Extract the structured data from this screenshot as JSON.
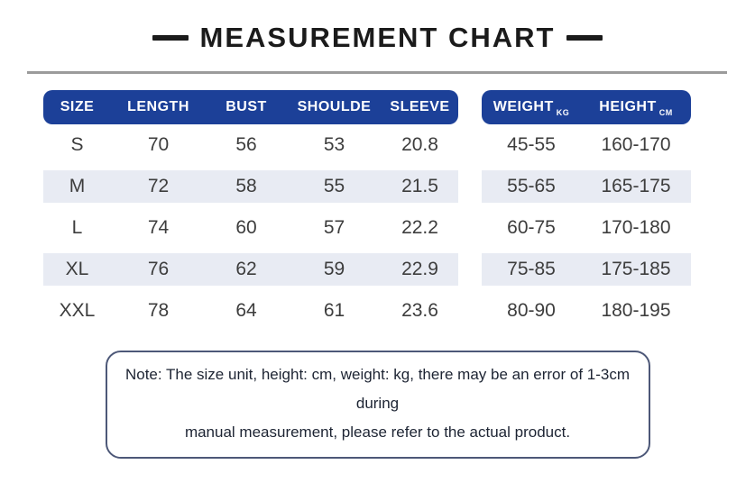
{
  "title": {
    "text": "MEASUREMENT CHART"
  },
  "colors": {
    "title_color": "#1b1b1b",
    "divider_color": "#9b9b9b",
    "header_bg": "#1c4098",
    "header_text": "#ffffff",
    "stripe_bg": "#e8ebf3",
    "cell_text": "#3d3d3d",
    "note_border": "#4d5878",
    "note_text": "#1d2433"
  },
  "size_table": {
    "headers": {
      "size": "SIZE",
      "length": "LENGTH",
      "bust": "BUST",
      "shoulder": "SHOULDE",
      "sleeve": "SLEEVE",
      "weight": "WEIGHT",
      "weight_unit": "KG",
      "height": "HEIGHT",
      "height_unit": "CM"
    },
    "rows": [
      {
        "size": "S",
        "length": "70",
        "bust": "56",
        "shoulder": "53",
        "sleeve": "20.8",
        "weight": "45-55",
        "height": "160-170"
      },
      {
        "size": "M",
        "length": "72",
        "bust": "58",
        "shoulder": "55",
        "sleeve": "21.5",
        "weight": "55-65",
        "height": "165-175"
      },
      {
        "size": "L",
        "length": "74",
        "bust": "60",
        "shoulder": "57",
        "sleeve": "22.2",
        "weight": "60-75",
        "height": "170-180"
      },
      {
        "size": "XL",
        "length": "76",
        "bust": "62",
        "shoulder": "59",
        "sleeve": "22.9",
        "weight": "75-85",
        "height": "175-185"
      },
      {
        "size": "XXL",
        "length": "78",
        "bust": "64",
        "shoulder": "61",
        "sleeve": "23.6",
        "weight": "80-90",
        "height": "180-195"
      }
    ]
  },
  "note": {
    "line1": "Note: The size unit, height: cm, weight: kg, there may be an error of 1-3cm during",
    "line2": "manual measurement, please refer to the actual product."
  },
  "chart_data": {
    "type": "table",
    "title": "MEASUREMENT CHART",
    "columns": [
      "SIZE",
      "LENGTH",
      "BUST",
      "SHOULDE",
      "SLEEVE",
      "WEIGHT (KG)",
      "HEIGHT (CM)"
    ],
    "rows": [
      [
        "S",
        70,
        56,
        53,
        20.8,
        "45-55",
        "160-170"
      ],
      [
        "M",
        72,
        58,
        55,
        21.5,
        "55-65",
        "165-175"
      ],
      [
        "L",
        74,
        60,
        57,
        22.2,
        "60-75",
        "170-180"
      ],
      [
        "XL",
        76,
        62,
        59,
        22.9,
        "75-85",
        "175-185"
      ],
      [
        "XXL",
        78,
        64,
        61,
        23.6,
        "80-90",
        "180-195"
      ]
    ],
    "note": "Note: The size unit, height: cm, weight: kg, there may be an error of 1-3cm during manual measurement, please refer to the actual product.",
    "layout": "two table blocks side by side: garment measurements (left, blue pill header) and body stats (right, blue pill header); rows M and XL have light blue stripe background"
  }
}
